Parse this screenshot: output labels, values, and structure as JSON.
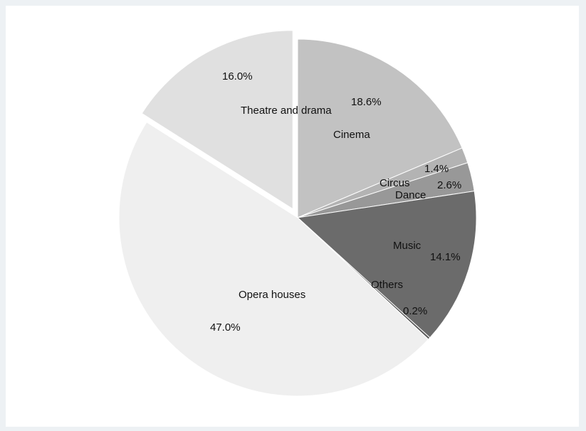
{
  "chart_data": {
    "type": "pie",
    "title": "",
    "slices": [
      {
        "label": "Cinema",
        "value": 18.6,
        "value_label": "18.6%",
        "color": "#c2c2c2",
        "explode": 0
      },
      {
        "label": "Circus",
        "value": 1.4,
        "value_label": "1.4%",
        "color": "#b3b3b3",
        "explode": 0
      },
      {
        "label": "Dance",
        "value": 2.6,
        "value_label": "2.6%",
        "color": "#989898",
        "explode": 0
      },
      {
        "label": "Music",
        "value": 14.1,
        "value_label": "14.1%",
        "color": "#6b6b6b",
        "explode": 0
      },
      {
        "label": "Others",
        "value": 0.2,
        "value_label": "0.2%",
        "color": "#5a5a5a",
        "explode": 0
      },
      {
        "label": "Opera houses",
        "value": 47.0,
        "value_label": "47.0%",
        "color": "#efefef",
        "explode": 0
      },
      {
        "label": "Theatre and drama",
        "value": 16.0,
        "value_label": "16.0%",
        "color": "#e0e0e0",
        "explode": 1
      }
    ],
    "legend": "none"
  }
}
